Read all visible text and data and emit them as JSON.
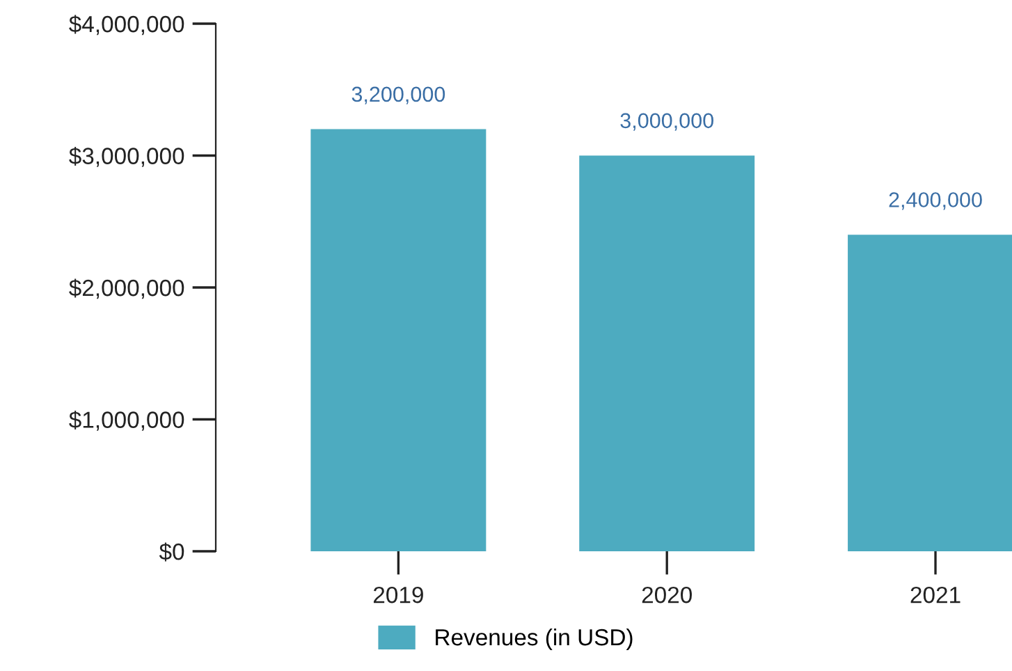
{
  "chart_data": {
    "type": "bar",
    "categories": [
      "2019",
      "2020",
      "2021"
    ],
    "series": [
      {
        "name": "Revenues (in USD)",
        "color": "#4dabc0",
        "values": [
          3200000,
          3000000,
          2400000
        ],
        "value_labels": [
          "3,200,000",
          "3,000,000",
          "2,400,000"
        ]
      }
    ],
    "ylim": [
      0,
      4000000
    ],
    "yticks": [
      {
        "value": 0,
        "label": "$0"
      },
      {
        "value": 1000000,
        "label": "$1,000,000"
      },
      {
        "value": 2000000,
        "label": "$2,000,000"
      },
      {
        "value": 3000000,
        "label": "$3,000,000"
      },
      {
        "value": 4000000,
        "label": "$4,000,000"
      }
    ],
    "grid": false,
    "legend": "bottom"
  }
}
